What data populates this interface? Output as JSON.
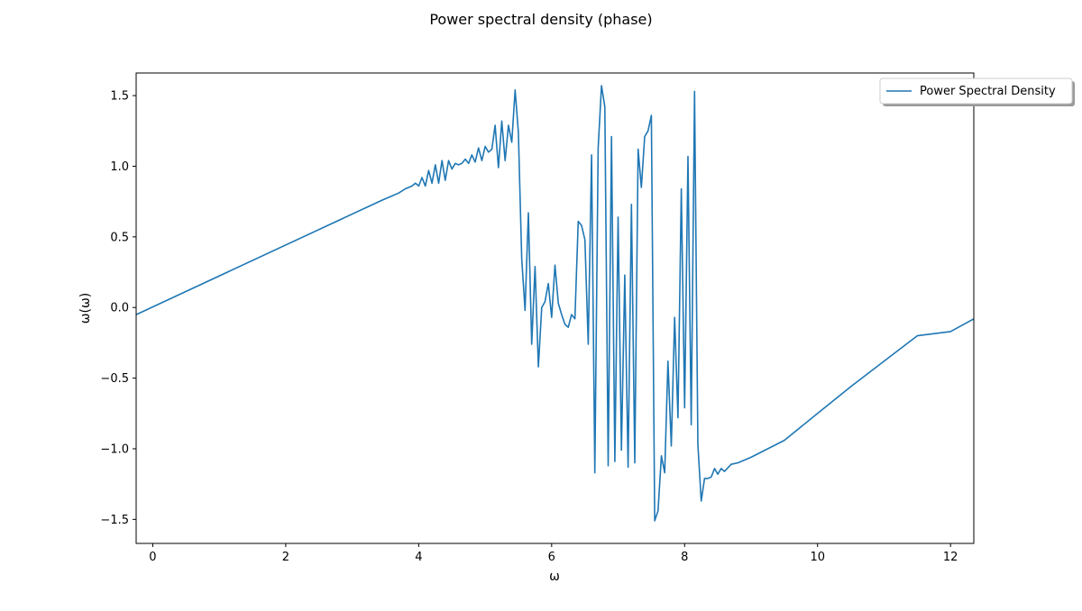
{
  "chart_data": {
    "type": "line",
    "title": "Power spectral density (phase)",
    "xlabel": "ω",
    "ylabel": "ω(ω)",
    "xlim": [
      -0.25,
      12.35
    ],
    "ylim": [
      -1.67,
      1.66
    ],
    "xticks": [
      0,
      2,
      4,
      6,
      8,
      10,
      12
    ],
    "yticks": [
      -1.5,
      -1.0,
      -0.5,
      0.0,
      0.5,
      1.0,
      1.5
    ],
    "ytick_labels": [
      "−1.5",
      "−1.0",
      "−0.5",
      "0.0",
      "0.5",
      "1.0",
      "1.5"
    ],
    "grid": false,
    "legend_position": "top-right (outside)",
    "series": [
      {
        "name": "Power Spectral Density",
        "color": "#1f77b4",
        "x": [
          -0.25,
          3.45,
          3.6,
          3.7,
          3.8,
          3.9,
          3.95,
          4.0,
          4.05,
          4.1,
          4.15,
          4.2,
          4.25,
          4.3,
          4.35,
          4.4,
          4.45,
          4.5,
          4.55,
          4.6,
          4.65,
          4.7,
          4.75,
          4.8,
          4.85,
          4.9,
          4.95,
          5.0,
          5.05,
          5.1,
          5.15,
          5.2,
          5.25,
          5.3,
          5.35,
          5.4,
          5.45,
          5.5,
          5.55,
          5.6,
          5.65,
          5.7,
          5.75,
          5.8,
          5.85,
          5.9,
          5.95,
          6.0,
          6.05,
          6.1,
          6.15,
          6.2,
          6.25,
          6.3,
          6.35,
          6.4,
          6.45,
          6.5,
          6.55,
          6.6,
          6.65,
          6.7,
          6.75,
          6.8,
          6.85,
          6.9,
          6.95,
          7.0,
          7.05,
          7.1,
          7.15,
          7.2,
          7.25,
          7.3,
          7.35,
          7.4,
          7.45,
          7.5,
          7.55,
          7.6,
          7.65,
          7.7,
          7.75,
          7.8,
          7.85,
          7.9,
          7.95,
          8.0,
          8.05,
          8.1,
          8.15,
          8.2,
          8.25,
          8.3,
          8.35,
          8.4,
          8.45,
          8.5,
          8.55,
          8.6,
          8.7,
          8.8,
          9.0,
          9.5,
          10.0,
          10.5,
          11.0,
          11.5,
          12.0,
          12.35
        ],
        "y": [
          -0.05,
          0.76,
          0.79,
          0.81,
          0.84,
          0.86,
          0.88,
          0.86,
          0.92,
          0.86,
          0.97,
          0.88,
          1.01,
          0.88,
          1.04,
          0.9,
          1.04,
          0.98,
          1.02,
          1.01,
          1.02,
          1.05,
          1.02,
          1.08,
          1.03,
          1.13,
          1.04,
          1.14,
          1.1,
          1.12,
          1.29,
          0.99,
          1.32,
          1.04,
          1.29,
          1.17,
          1.54,
          1.24,
          0.35,
          -0.02,
          0.67,
          -0.26,
          0.29,
          -0.42,
          0.0,
          0.04,
          0.17,
          -0.07,
          0.3,
          0.03,
          -0.05,
          -0.12,
          -0.14,
          -0.05,
          -0.08,
          0.61,
          0.58,
          0.48,
          -0.26,
          1.08,
          -1.17,
          1.13,
          1.57,
          1.42,
          -1.12,
          1.21,
          -1.09,
          0.64,
          -1.01,
          0.23,
          -1.13,
          0.73,
          -1.1,
          1.12,
          0.85,
          1.21,
          1.25,
          1.36,
          -1.51,
          -1.44,
          -1.05,
          -1.17,
          -0.38,
          -0.98,
          -0.07,
          -0.78,
          0.84,
          -0.71,
          1.07,
          -0.83,
          1.53,
          -0.97,
          -1.37,
          -1.21,
          -1.21,
          -1.2,
          -1.14,
          -1.18,
          -1.14,
          -1.16,
          -1.11,
          -1.1,
          -1.06,
          -0.94,
          -0.75,
          -0.56,
          -0.38,
          -0.2,
          -0.17,
          -0.08
        ]
      }
    ]
  }
}
